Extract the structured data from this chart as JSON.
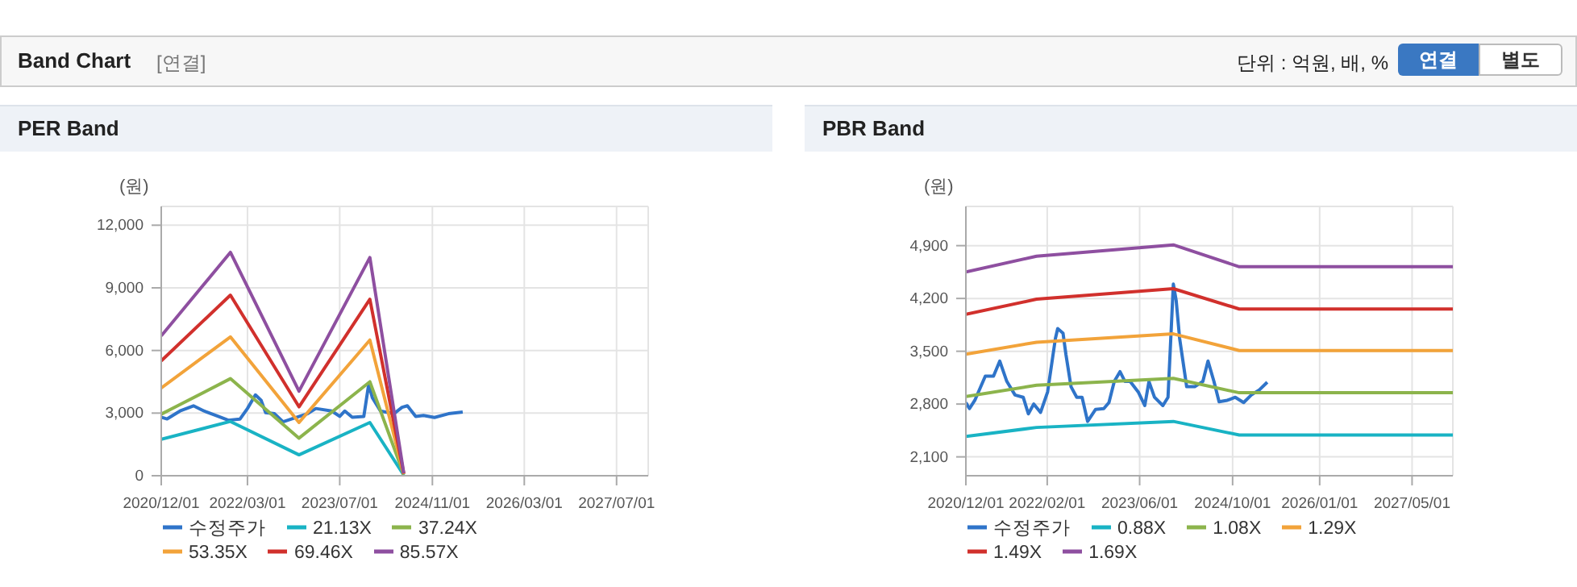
{
  "chart_data": [
    {
      "type": "line",
      "title": "PER Band",
      "ylabel": "(원)",
      "annotations": [
        "Band Chart",
        "[연결]",
        "단위 : 억원, 배, %",
        "연결",
        "별도"
      ],
      "xlim": [
        "2020-12-01",
        "2027-12-15"
      ],
      "xticks": [
        {
          "value": "2020-12-01",
          "label": "2020/12/01"
        },
        {
          "value": "2022-03-01",
          "label": "2022/03/01"
        },
        {
          "value": "2023-07-01",
          "label": "2023/07/01"
        },
        {
          "value": "2024-11-01",
          "label": "2024/11/01"
        },
        {
          "value": "2026-03-01",
          "label": "2026/03/01"
        },
        {
          "value": "2027-07-01",
          "label": "2027/07/01"
        }
      ],
      "ylim": [
        0,
        12900
      ],
      "yticks": [
        0,
        {
          "value": 3000,
          "label": "3,000"
        },
        {
          "value": 6000,
          "label": "6,000"
        },
        {
          "value": 9000,
          "label": "9,000"
        },
        {
          "value": 12000,
          "label": "12,000"
        }
      ],
      "grid": true,
      "legend": "bottom",
      "marker": "none",
      "line_style": "solid",
      "series": [
        {
          "name": "수정주가",
          "color": "#2f74c9",
          "x": [
            "2020-12-01",
            "2021-01-01",
            "2021-03-10",
            "2021-05-20",
            "2021-07-15",
            "2021-09-28",
            "2021-11-20",
            "2022-01-20",
            "2022-03-01",
            "2022-04-12",
            "2022-05-12",
            "2022-06-05",
            "2022-07-22",
            "2022-09-05",
            "2022-11-01",
            "2023-01-12",
            "2023-02-25",
            "2023-05-20",
            "2023-07-01",
            "2023-07-28",
            "2023-09-05",
            "2023-11-05",
            "2023-12-01",
            "2023-12-20",
            "2024-02-01",
            "2024-04-12",
            "2024-05-25",
            "2024-06-22",
            "2024-08-05",
            "2024-09-15",
            "2024-11-12",
            "2025-01-25",
            "2025-04-10"
          ],
          "values": [
            2800,
            2720,
            3100,
            3350,
            3100,
            2840,
            2660,
            2710,
            3220,
            3870,
            3610,
            3020,
            2970,
            2580,
            2760,
            2970,
            3220,
            3100,
            2840,
            3100,
            2800,
            2840,
            4390,
            3740,
            3100,
            2970,
            3280,
            3350,
            2840,
            2890,
            2790,
            2970,
            3050
          ]
        },
        {
          "name": "21.13X",
          "color": "#19b3c4",
          "x": [
            "2020-12-01",
            "2021-12-01",
            "2022-11-28",
            "2023-12-07",
            "2024-06-03"
          ],
          "values": [
            1750,
            2600,
            1000,
            2550,
            30
          ]
        },
        {
          "name": "37.24X",
          "color": "#8cb44c",
          "x": [
            "2020-12-01",
            "2021-12-01",
            "2022-11-28",
            "2023-12-07",
            "2024-06-03"
          ],
          "values": [
            2950,
            4650,
            1800,
            4500,
            60
          ]
        },
        {
          "name": "53.35X",
          "color": "#f2a33a",
          "x": [
            "2020-12-01",
            "2021-12-01",
            "2022-11-28",
            "2023-12-07",
            "2024-06-03"
          ],
          "values": [
            4200,
            6650,
            2550,
            6500,
            80
          ]
        },
        {
          "name": "69.46X",
          "color": "#d1302c",
          "x": [
            "2020-12-01",
            "2021-12-01",
            "2022-11-28",
            "2023-12-07",
            "2024-06-03"
          ],
          "values": [
            5500,
            8650,
            3300,
            8450,
            100
          ]
        },
        {
          "name": "85.57X",
          "color": "#8e4fa0",
          "x": [
            "2020-12-01",
            "2021-12-01",
            "2022-11-28",
            "2023-12-07",
            "2024-06-03"
          ],
          "values": [
            6700,
            10700,
            4050,
            10450,
            120
          ]
        }
      ]
    },
    {
      "type": "line",
      "title": "PBR Band",
      "ylabel": "(원)",
      "xlim": [
        "2020-12-01",
        "2027-12-01"
      ],
      "xticks": [
        {
          "value": "2020-12-01",
          "label": "2020/12/01"
        },
        {
          "value": "2022-02-01",
          "label": "2022/02/01"
        },
        {
          "value": "2023-06-01",
          "label": "2023/06/01"
        },
        {
          "value": "2024-10-01",
          "label": "2024/10/01"
        },
        {
          "value": "2026-01-01",
          "label": "2026/01/01"
        },
        {
          "value": "2027-05-01",
          "label": "2027/05/01"
        }
      ],
      "ylim": [
        1850,
        5420
      ],
      "yticks": [
        {
          "value": 2100,
          "label": "2,100"
        },
        {
          "value": 2800,
          "label": "2,800"
        },
        {
          "value": 3500,
          "label": "3,500"
        },
        {
          "value": 4200,
          "label": "4,200"
        },
        {
          "value": 4900,
          "label": "4,900"
        }
      ],
      "grid": true,
      "legend": "bottom",
      "marker": "none",
      "line_style": "solid",
      "series": [
        {
          "name": "수정주가",
          "color": "#2f74c9",
          "x": [
            "2020-12-01",
            "2020-12-20",
            "2021-01-17",
            "2021-03-13",
            "2021-04-25",
            "2021-05-28",
            "2021-07-04",
            "2021-08-16",
            "2021-09-28",
            "2021-10-25",
            "2021-11-22",
            "2021-12-28",
            "2022-02-03",
            "2022-03-16",
            "2022-03-28",
            "2022-04-25",
            "2022-05-10",
            "2022-06-06",
            "2022-07-06",
            "2022-08-03",
            "2022-09-01",
            "2022-10-13",
            "2022-11-25",
            "2022-12-22",
            "2023-01-19",
            "2023-02-18",
            "2023-03-16",
            "2023-04-12",
            "2023-05-25",
            "2023-06-28",
            "2023-07-20",
            "2023-08-18",
            "2023-10-01",
            "2023-10-28",
            "2023-11-25",
            "2023-12-10",
            "2023-12-28",
            "2024-02-03",
            "2024-03-16",
            "2024-04-28",
            "2024-05-25",
            "2024-06-25",
            "2024-07-22",
            "2024-09-03",
            "2024-10-15",
            "2024-11-28",
            "2025-01-07",
            "2025-02-19",
            "2025-04-01"
          ],
          "values": [
            2820,
            2740,
            2850,
            3170,
            3170,
            3370,
            3100,
            2920,
            2890,
            2670,
            2800,
            2690,
            2960,
            3670,
            3800,
            3740,
            3460,
            3030,
            2890,
            2890,
            2570,
            2730,
            2740,
            2820,
            3100,
            3230,
            3100,
            3100,
            2960,
            2780,
            3100,
            2890,
            2780,
            2890,
            4390,
            4170,
            3670,
            3030,
            3030,
            3100,
            3370,
            3100,
            2830,
            2850,
            2890,
            2820,
            2920,
            2990,
            3090
          ]
        },
        {
          "name": "0.88X",
          "color": "#19b3c4",
          "x": [
            "2020-12-01",
            "2021-12-07",
            "2023-11-25",
            "2024-11-05",
            "2027-12-01"
          ],
          "values": [
            2370,
            2490,
            2570,
            2390,
            2390
          ]
        },
        {
          "name": "1.08X",
          "color": "#8cb44c",
          "x": [
            "2020-12-01",
            "2021-12-07",
            "2023-11-25",
            "2024-11-05",
            "2027-12-01"
          ],
          "values": [
            2900,
            3050,
            3140,
            2950,
            2950
          ]
        },
        {
          "name": "1.29X",
          "color": "#f2a33a",
          "x": [
            "2020-12-01",
            "2021-12-07",
            "2023-11-25",
            "2024-11-05",
            "2027-12-01"
          ],
          "values": [
            3460,
            3620,
            3730,
            3510,
            3510
          ]
        },
        {
          "name": "1.49X",
          "color": "#d1302c",
          "x": [
            "2020-12-01",
            "2021-12-07",
            "2023-11-25",
            "2024-11-05",
            "2027-12-01"
          ],
          "values": [
            3990,
            4190,
            4330,
            4060,
            4060
          ]
        },
        {
          "name": "1.69X",
          "color": "#8e4fa0",
          "x": [
            "2020-12-01",
            "2021-12-07",
            "2023-11-25",
            "2024-11-05",
            "2027-12-01"
          ],
          "values": [
            4550,
            4760,
            4910,
            4620,
            4620
          ]
        }
      ]
    }
  ]
}
